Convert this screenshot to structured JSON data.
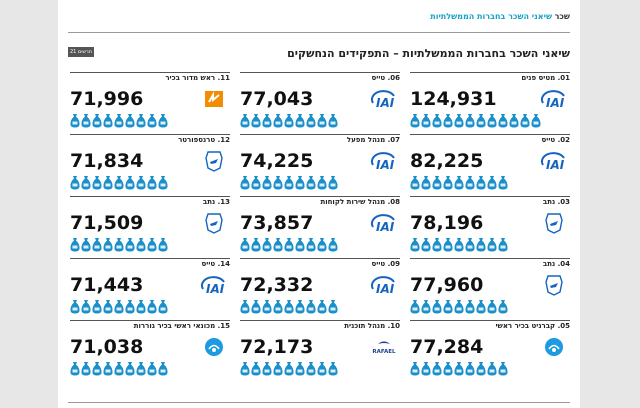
{
  "header": {
    "section": "שכר",
    "breadcrumb": "שיאני השכר בחברות הממשלתיות"
  },
  "badge": "תרשים 21",
  "title": "שיאני השכר בחברות הממשלתיות – התפקידים הנחשקים",
  "cards": [
    {
      "label": "01. מטיס פנים",
      "value": "124,931",
      "logo": "iai-logo"
    },
    {
      "label": "02. טייס",
      "value": "82,225",
      "logo": "iai-logo"
    },
    {
      "label": "03. נתב",
      "value": "78,196",
      "logo": "airports-authority-logo"
    },
    {
      "label": "04. נתב",
      "value": "77,960",
      "logo": "airports-authority-logo"
    },
    {
      "label": "05. קברניט בכיר ראשי",
      "value": "77,284",
      "logo": "ports-company-logo"
    },
    {
      "label": "06. טייס",
      "value": "77,043",
      "logo": "iai-logo"
    },
    {
      "label": "07. מנהל מפעל",
      "value": "74,225",
      "logo": "iai-logo"
    },
    {
      "label": "08. מנהל שירות לקוחות",
      "value": "73,857",
      "logo": "iai-logo"
    },
    {
      "label": "09. טייס",
      "value": "72,332",
      "logo": "iai-logo"
    },
    {
      "label": "10. מנהל תוכנית",
      "value": "72,173",
      "logo": "rafael-logo",
      "logo_text": "RAFAEL"
    },
    {
      "label": "11. ראש מדור בכיר",
      "value": "71,996",
      "logo": "electric-company-logo"
    },
    {
      "label": "12. טרנספורטר",
      "value": "71,834",
      "logo": "airports-authority-logo"
    },
    {
      "label": "13. נתב",
      "value": "71,509",
      "logo": "airports-authority-logo"
    },
    {
      "label": "14. טייס",
      "value": "71,443",
      "logo": "iai-logo"
    },
    {
      "label": "15. מכונאי ראשי בכיר גוררות",
      "value": "71,038",
      "logo": "ports-company-logo"
    }
  ],
  "colors": {
    "accent": "#16a2c4",
    "bag": "#1a8fc9",
    "iai": "#1565c0"
  },
  "bag_icon": "money-bag-icon"
}
